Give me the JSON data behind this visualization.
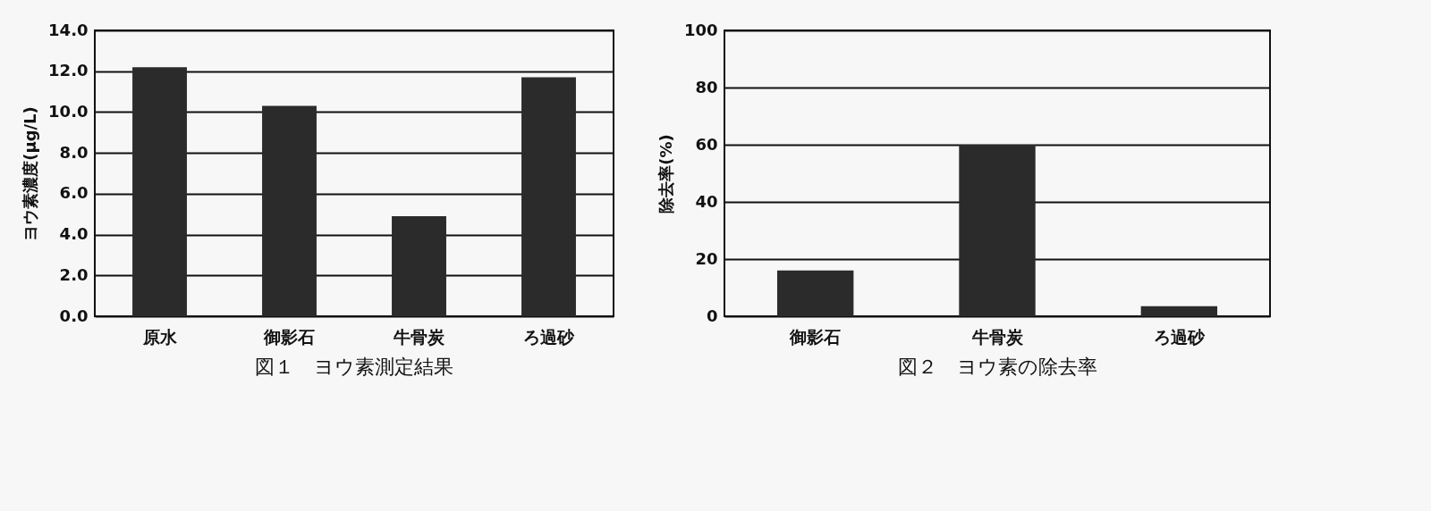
{
  "chart_data": [
    {
      "type": "bar",
      "title": "図１　ヨウ素測定結果",
      "ylabel": "ヨウ素濃度(μg/L)",
      "categories": [
        "原水",
        "御影石",
        "牛骨炭",
        "ろ過砂"
      ],
      "values": [
        12.2,
        10.3,
        4.9,
        11.7
      ],
      "color": "#2b2b2b",
      "ylim": [
        0,
        14
      ],
      "yticks": [
        {
          "value": 0,
          "label": "0.0"
        },
        {
          "value": 2,
          "label": "2.0"
        },
        {
          "value": 4,
          "label": "4.0"
        },
        {
          "value": 6,
          "label": "6.0"
        },
        {
          "value": 8,
          "label": "8.0"
        },
        {
          "value": 10,
          "label": "10.0"
        },
        {
          "value": 12,
          "label": "12.0"
        },
        {
          "value": 14,
          "label": "14.0"
        }
      ],
      "grid": "y"
    },
    {
      "type": "bar",
      "title": "図２　ヨウ素の除去率",
      "ylabel": "除去率(%)",
      "categories": [
        "御影石",
        "牛骨炭",
        "ろ過砂"
      ],
      "values": [
        16,
        60,
        3.5
      ],
      "color": "#2b2b2b",
      "ylim": [
        0,
        100
      ],
      "yticks": [
        0,
        20,
        40,
        60,
        80,
        100
      ],
      "grid": "y"
    }
  ]
}
